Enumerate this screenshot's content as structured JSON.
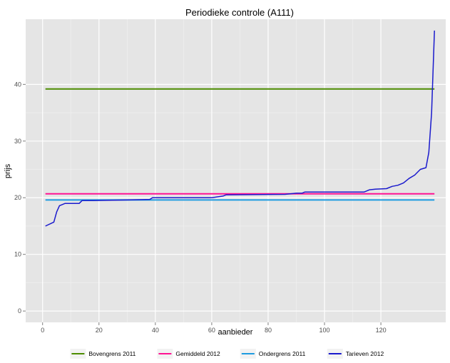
{
  "chart_data": {
    "type": "line",
    "title": "Periodieke controle (A111)",
    "xlabel": "aanbieder",
    "ylabel": "prijs",
    "xlim": [
      -6,
      143
    ],
    "ylim": [
      -2,
      51.5
    ],
    "x_ticks": [
      0,
      20,
      40,
      60,
      80,
      100,
      120
    ],
    "y_ticks": [
      0,
      10,
      20,
      30,
      40
    ],
    "grid": true,
    "legend_position": "bottom",
    "colors": {
      "panel_bg": "#e5e5e5",
      "grid_major": "#ffffff",
      "grid_minor": "#f2f2f2",
      "axis_text": "#4d4d4d"
    },
    "series": [
      {
        "name": "Bovengrens 2011",
        "color": "#4d8c00",
        "kind": "hline",
        "x": [
          1,
          139
        ],
        "values": [
          39.2,
          39.2
        ]
      },
      {
        "name": "Gemiddeld 2012",
        "color": "#ff1493",
        "kind": "hline",
        "x": [
          1,
          139
        ],
        "values": [
          20.7,
          20.7
        ]
      },
      {
        "name": "Ondergrens 2011",
        "color": "#1e9be0",
        "kind": "hline",
        "x": [
          1,
          139
        ],
        "values": [
          19.6,
          19.6
        ]
      },
      {
        "name": "Tarieven 2012",
        "color": "#1a1acd",
        "kind": "line",
        "x": [
          1,
          4,
          5,
          6,
          7,
          8,
          13,
          14,
          18,
          30,
          38,
          39,
          60,
          64,
          65,
          86,
          90,
          92,
          93,
          114,
          116,
          118,
          122,
          124,
          126,
          128,
          130,
          132,
          134,
          136,
          137,
          138,
          139
        ],
        "values": [
          15.0,
          15.7,
          17.5,
          18.6,
          18.8,
          19.0,
          19.0,
          19.5,
          19.5,
          19.6,
          19.7,
          20.0,
          20.0,
          20.3,
          20.5,
          20.6,
          20.8,
          20.8,
          21.0,
          21.0,
          21.4,
          21.5,
          21.6,
          22.0,
          22.2,
          22.6,
          23.4,
          24.0,
          25.0,
          25.3,
          28.0,
          35.0,
          49.5
        ]
      }
    ]
  }
}
